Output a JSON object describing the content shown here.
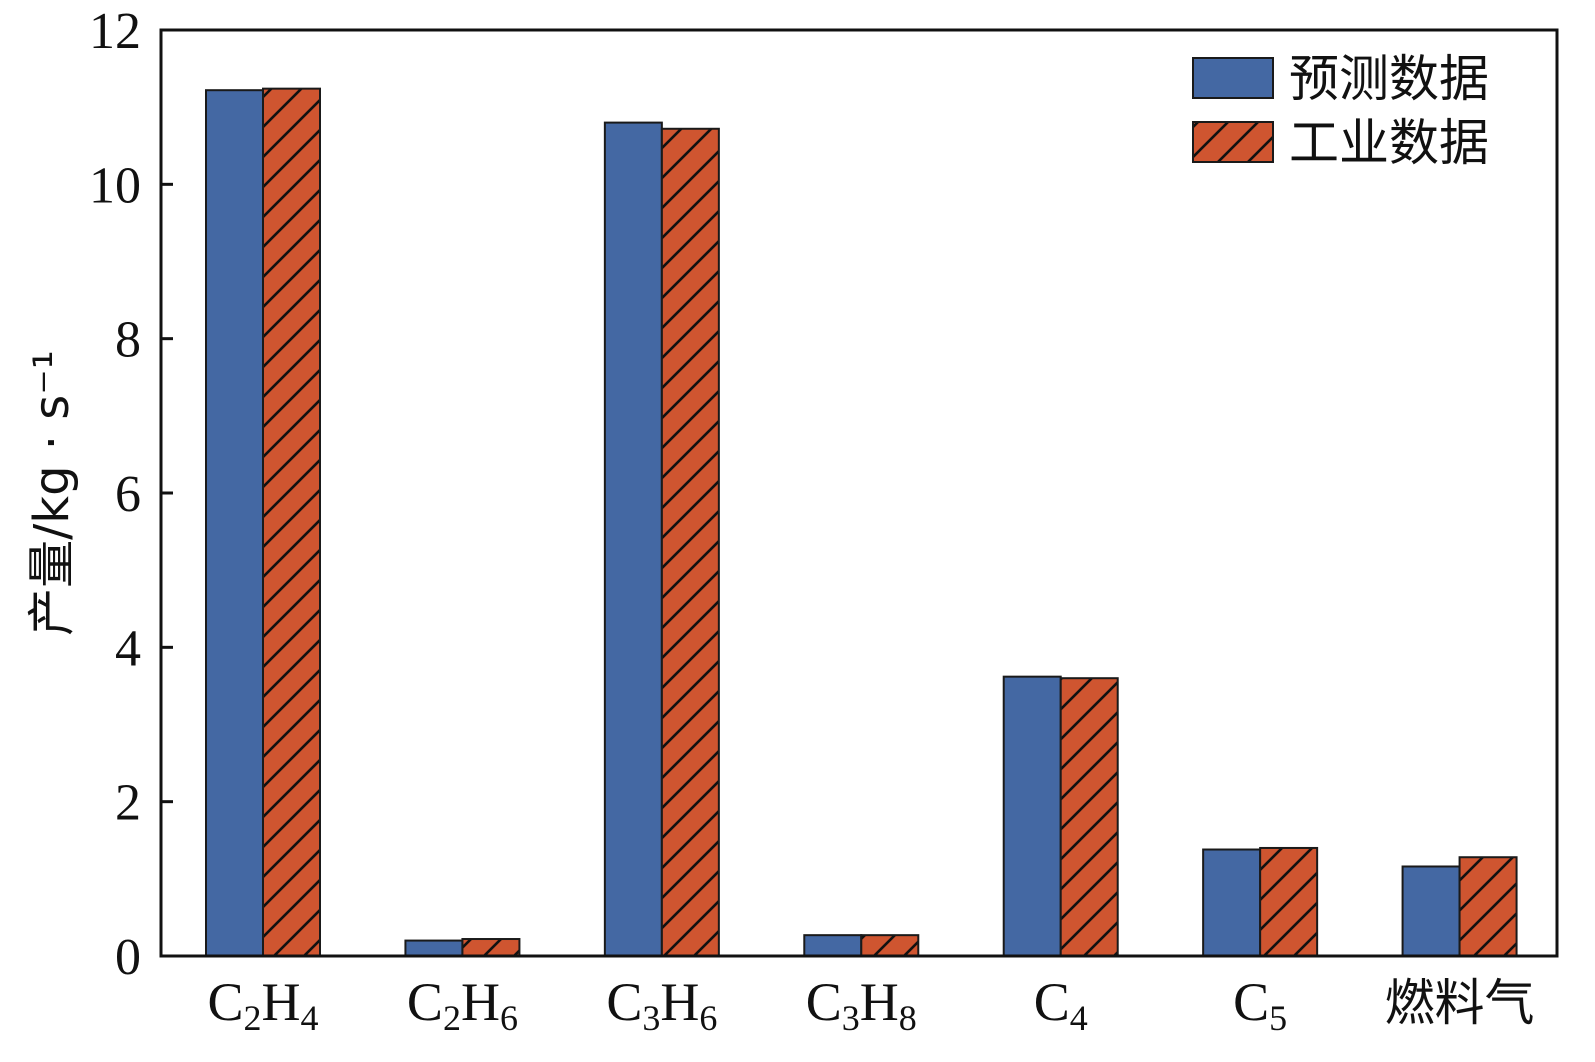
{
  "chart_data": {
    "type": "bar",
    "title": "",
    "xlabel": "",
    "ylabel": "产量/kg · s⁻¹",
    "ylim": [
      0,
      12
    ],
    "yticks": [
      "0",
      "2",
      "4",
      "6",
      "8",
      "10",
      "12"
    ],
    "categories": [
      {
        "base": "C",
        "n1": "2",
        "mid": "H",
        "n2": "4"
      },
      {
        "base": "C",
        "n1": "2",
        "mid": "H",
        "n2": "6"
      },
      {
        "base": "C",
        "n1": "3",
        "mid": "H",
        "n2": "6"
      },
      {
        "base": "C",
        "n1": "3",
        "mid": "H",
        "n2": "8"
      },
      {
        "base": "C",
        "n1": "4",
        "mid": "",
        "n2": ""
      },
      {
        "base": "C",
        "n1": "5",
        "mid": "",
        "n2": ""
      },
      {
        "base": "燃料气",
        "n1": "",
        "mid": "",
        "n2": ""
      }
    ],
    "series": [
      {
        "name": "预测数据",
        "color": "#4468a3",
        "pattern": "solid",
        "values": [
          11.22,
          0.2,
          10.8,
          0.27,
          3.62,
          1.38,
          1.16
        ]
      },
      {
        "name": "工业数据",
        "color": "#cf5530",
        "pattern": "hatch",
        "values": [
          11.24,
          0.22,
          10.72,
          0.27,
          3.6,
          1.4,
          1.28
        ]
      }
    ],
    "legend_position": "top-right",
    "grid": false
  }
}
